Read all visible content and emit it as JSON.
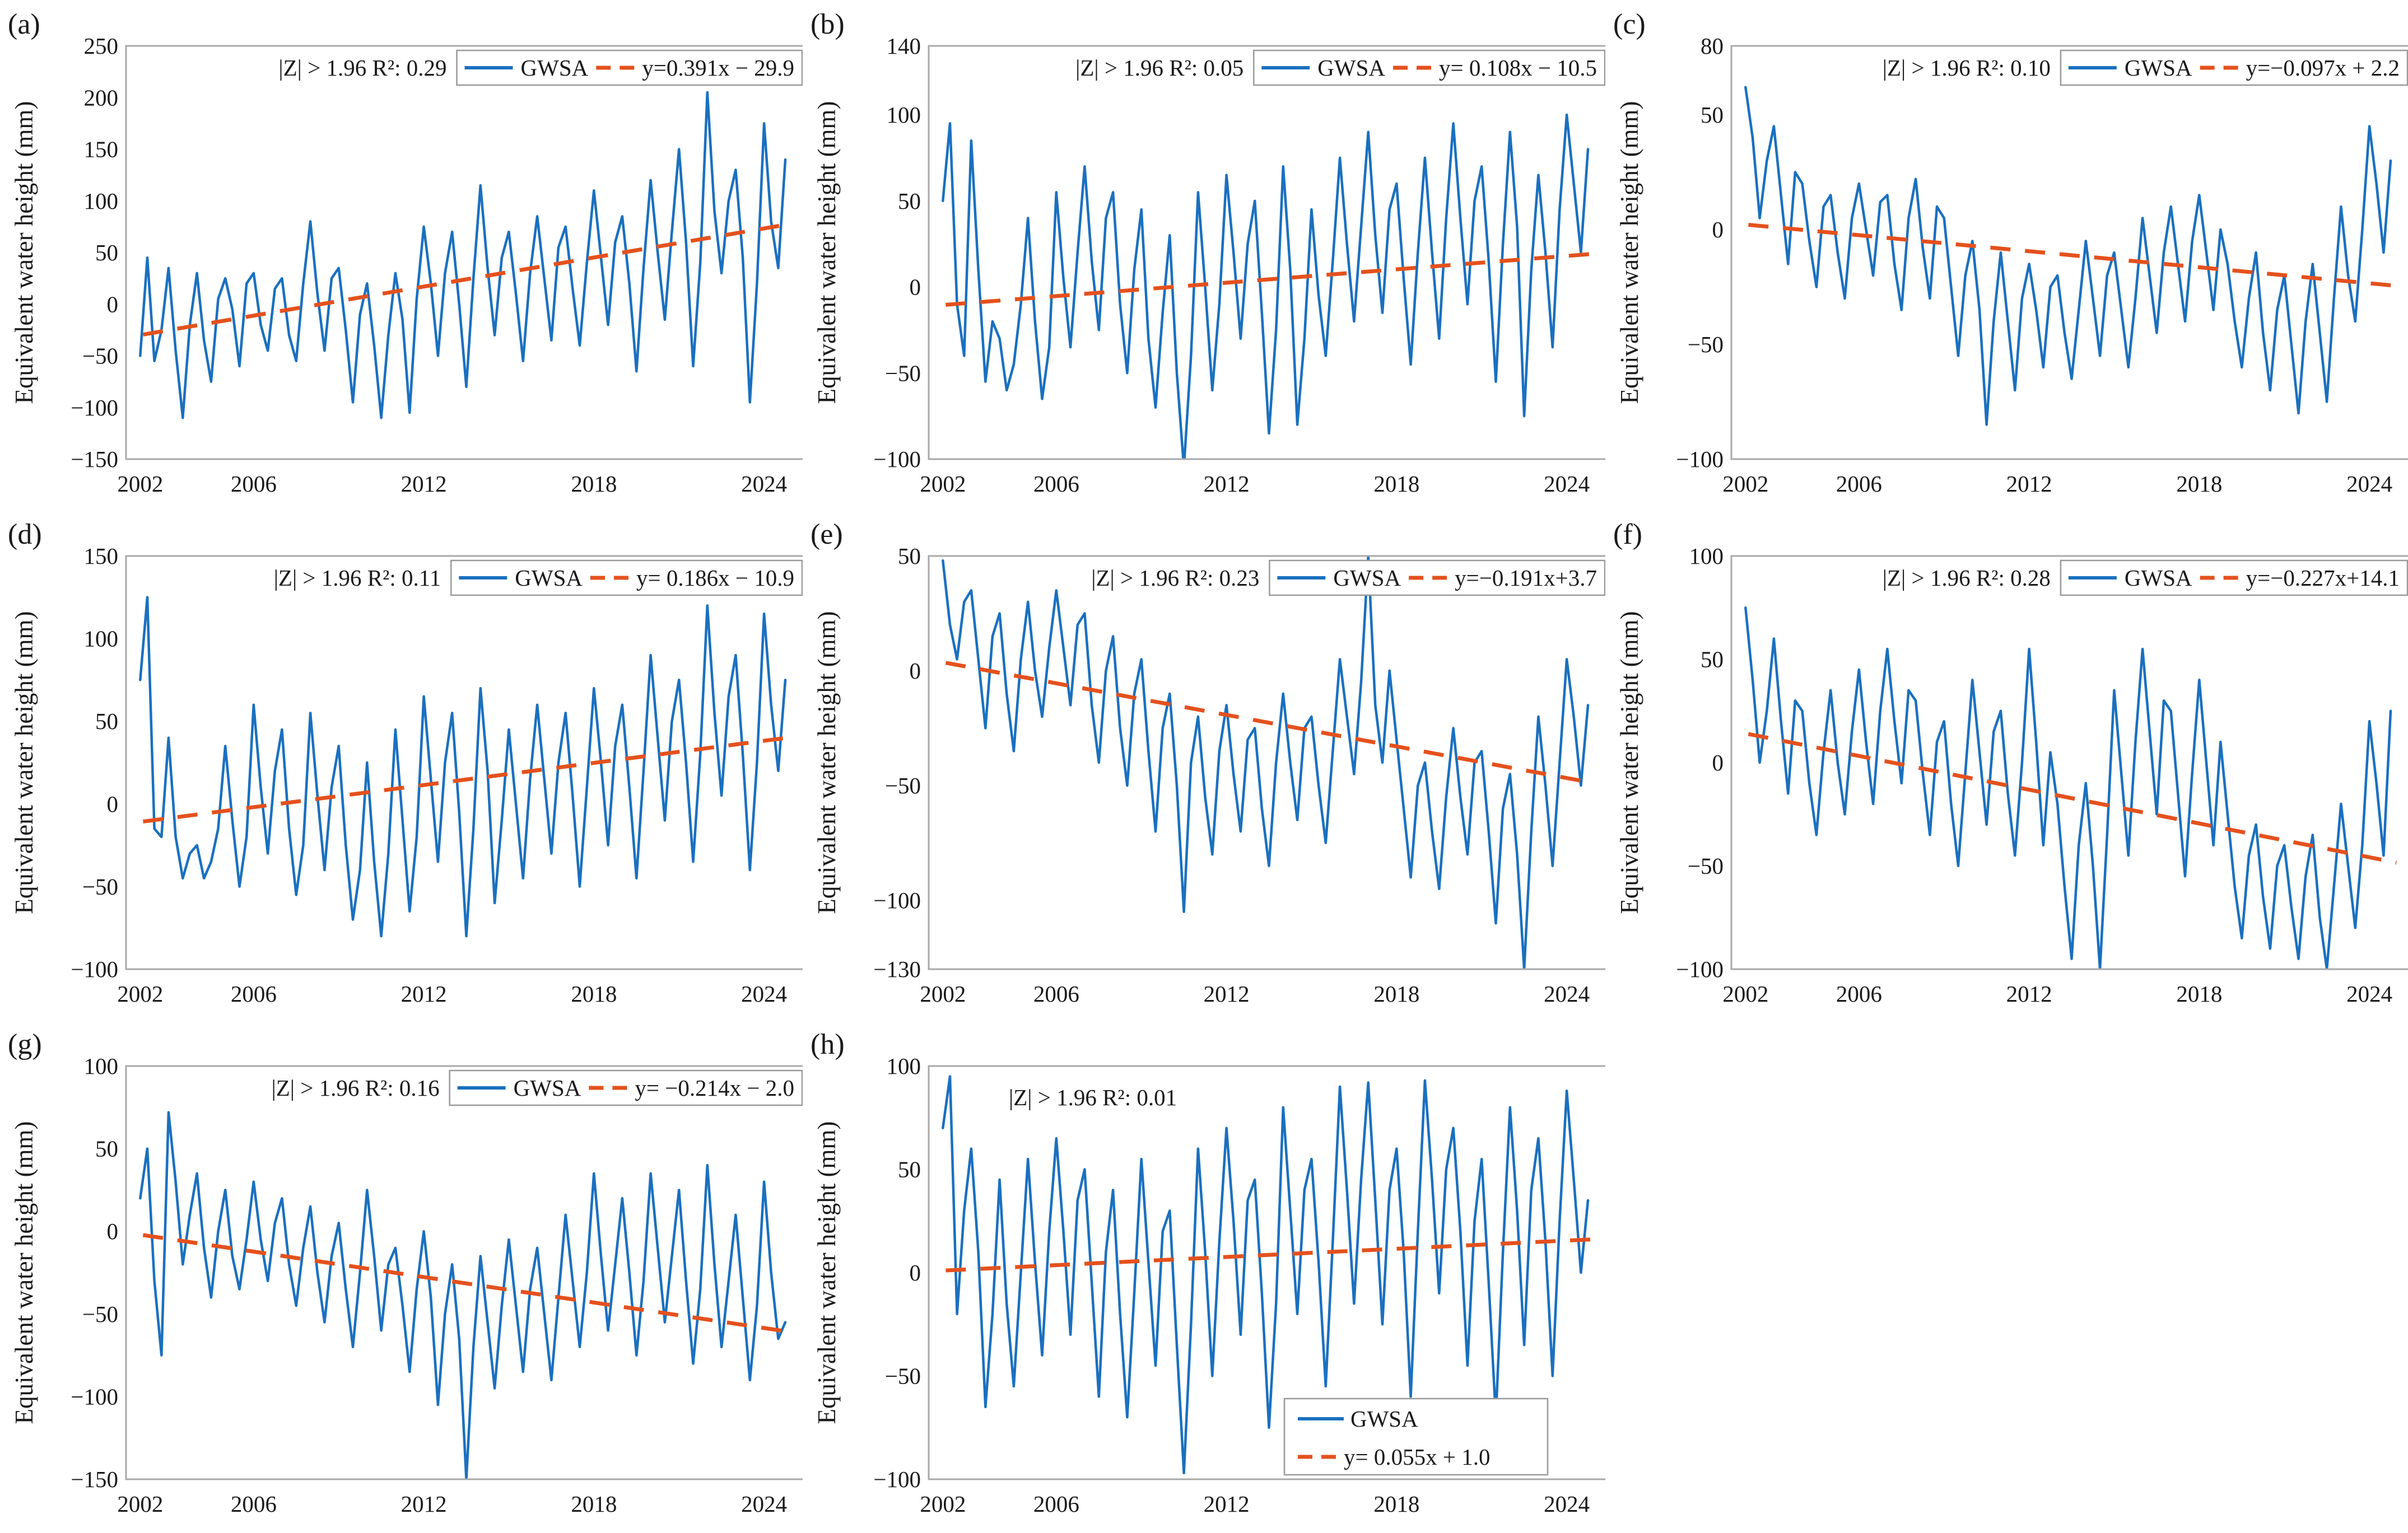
{
  "figure": {
    "ylabel": "Equivalent water height (mm)",
    "series_label": "GWSA",
    "xlim": [
      2001.5,
      2025.5
    ],
    "xticks": [
      2002,
      2006,
      2012,
      2018,
      2024
    ],
    "colors": {
      "series": "#1a70bf",
      "trend": "#e4511d",
      "axes_border": "#a9a9a9",
      "text": "#1a1a1a",
      "legend_border": "#999999"
    }
  },
  "chart_data": [
    {
      "id": "a",
      "type": "line",
      "label": "(a)",
      "stats": "|Z| > 1.96 R²: 0.29",
      "equation": "y=0.391x − 29.9",
      "trend": {
        "slope_per_month": 0.391,
        "intercept": -29.9
      },
      "ylim": [
        -150,
        250
      ],
      "yticks": [
        250,
        200,
        150,
        100,
        50,
        0,
        -50,
        -100,
        -150
      ],
      "legend_position": "top-right",
      "x_start": 2002.0,
      "x_step": 0.25,
      "values": [
        -50,
        45,
        -55,
        -25,
        35,
        -45,
        -110,
        -20,
        30,
        -35,
        -75,
        5,
        25,
        -5,
        -60,
        20,
        30,
        -20,
        -45,
        15,
        25,
        -30,
        -55,
        20,
        80,
        10,
        -45,
        25,
        35,
        -25,
        -95,
        -10,
        20,
        -40,
        -110,
        -30,
        30,
        -15,
        -105,
        5,
        75,
        20,
        -50,
        30,
        70,
        0,
        -80,
        25,
        115,
        35,
        -30,
        45,
        70,
        10,
        -55,
        30,
        85,
        25,
        -35,
        55,
        75,
        15,
        -40,
        40,
        110,
        45,
        -20,
        60,
        85,
        20,
        -65,
        35,
        120,
        50,
        -15,
        70,
        150,
        60,
        -60,
        40,
        205,
        90,
        30,
        100,
        130,
        45,
        -95,
        20,
        175,
        80,
        35,
        140
      ]
    },
    {
      "id": "b",
      "type": "line",
      "label": "(b)",
      "stats": "|Z| > 1.96 R²: 0.05",
      "equation": "y= 0.108x − 10.5",
      "trend": {
        "slope_per_month": 0.108,
        "intercept": -10.5
      },
      "ylim": [
        -100,
        140
      ],
      "yticks": [
        140,
        100,
        50,
        0,
        -50,
        -100
      ],
      "legend_position": "top-right",
      "x_start": 2002.0,
      "x_step": 0.25,
      "values": [
        50,
        95,
        -10,
        -40,
        85,
        10,
        -55,
        -20,
        -30,
        -60,
        -45,
        -10,
        40,
        -20,
        -65,
        -35,
        55,
        5,
        -35,
        20,
        70,
        15,
        -25,
        40,
        55,
        -10,
        -50,
        10,
        45,
        -30,
        -70,
        -15,
        30,
        -50,
        -105,
        -40,
        55,
        0,
        -60,
        -10,
        65,
        20,
        -30,
        25,
        50,
        -15,
        -85,
        -25,
        70,
        10,
        -80,
        -30,
        45,
        -5,
        -40,
        15,
        75,
        25,
        -20,
        35,
        90,
        30,
        -15,
        45,
        60,
        5,
        -45,
        20,
        75,
        20,
        -30,
        40,
        95,
        40,
        -10,
        50,
        70,
        15,
        -55,
        25,
        90,
        35,
        -75,
        10,
        65,
        20,
        -35,
        45,
        100,
        60,
        20,
        80
      ]
    },
    {
      "id": "c",
      "type": "line",
      "label": "(c)",
      "stats": "|Z| > 1.96 R²: 0.10",
      "equation": "y=−0.097x + 2.2",
      "trend": {
        "slope_per_month": -0.097,
        "intercept": 2.2
      },
      "ylim": [
        -100,
        80
      ],
      "yticks": [
        80,
        50,
        0,
        -50,
        -100
      ],
      "legend_position": "top-right",
      "x_start": 2002.0,
      "x_step": 0.25,
      "values": [
        62,
        40,
        5,
        30,
        45,
        15,
        -15,
        25,
        20,
        -5,
        -25,
        10,
        15,
        -10,
        -30,
        5,
        20,
        0,
        -20,
        12,
        15,
        -15,
        -35,
        5,
        22,
        -8,
        -30,
        10,
        5,
        -25,
        -55,
        -20,
        -5,
        -35,
        -85,
        -40,
        -10,
        -40,
        -70,
        -30,
        -15,
        -35,
        -60,
        -25,
        -20,
        -45,
        -65,
        -35,
        -5,
        -30,
        -55,
        -20,
        -10,
        -35,
        -60,
        -30,
        5,
        -20,
        -45,
        -10,
        10,
        -15,
        -40,
        -5,
        15,
        -10,
        -35,
        0,
        -15,
        -40,
        -60,
        -30,
        -10,
        -45,
        -70,
        -35,
        -20,
        -50,
        -80,
        -40,
        -15,
        -45,
        -75,
        -30,
        10,
        -20,
        -40,
        0,
        45,
        20,
        -10,
        30
      ]
    },
    {
      "id": "d",
      "type": "line",
      "label": "(d)",
      "stats": "|Z| > 1.96 R²: 0.11",
      "equation": "y= 0.186x − 10.9",
      "trend": {
        "slope_per_month": 0.186,
        "intercept": -10.9
      },
      "ylim": [
        -100,
        150
      ],
      "yticks": [
        150,
        100,
        50,
        0,
        -50,
        -100
      ],
      "legend_position": "top-right",
      "x_start": 2002.0,
      "x_step": 0.25,
      "values": [
        75,
        125,
        -15,
        -20,
        40,
        -20,
        -45,
        -30,
        -25,
        -45,
        -35,
        -15,
        35,
        -10,
        -50,
        -20,
        60,
        10,
        -30,
        20,
        45,
        -15,
        -55,
        -25,
        55,
        5,
        -40,
        10,
        35,
        -25,
        -70,
        -40,
        25,
        -35,
        -80,
        -30,
        45,
        -10,
        -65,
        -20,
        65,
        15,
        -35,
        25,
        55,
        -5,
        -80,
        -15,
        70,
        20,
        -60,
        -10,
        45,
        0,
        -45,
        15,
        60,
        15,
        -30,
        25,
        55,
        5,
        -50,
        10,
        70,
        25,
        -25,
        35,
        60,
        10,
        -45,
        20,
        90,
        40,
        -10,
        50,
        75,
        25,
        -35,
        30,
        120,
        55,
        5,
        65,
        90,
        30,
        -40,
        25,
        115,
        60,
        20,
        75
      ]
    },
    {
      "id": "e",
      "type": "line",
      "label": "(e)",
      "stats": "|Z| > 1.96 R²: 0.23",
      "equation": "y=−0.191x+3.7",
      "trend": {
        "slope_per_month": -0.191,
        "intercept": 3.7
      },
      "ylim": [
        -130,
        50
      ],
      "yticks": [
        50,
        0,
        -50,
        -100,
        -130
      ],
      "legend_position": "top-right",
      "x_start": 2002.0,
      "x_step": 0.25,
      "values": [
        48,
        20,
        5,
        30,
        35,
        5,
        -25,
        15,
        25,
        -10,
        -35,
        5,
        30,
        0,
        -20,
        10,
        35,
        10,
        -15,
        20,
        25,
        -15,
        -40,
        0,
        15,
        -25,
        -50,
        -10,
        5,
        -35,
        -70,
        -25,
        -10,
        -50,
        -105,
        -40,
        -20,
        -55,
        -80,
        -35,
        -15,
        -45,
        -70,
        -30,
        -25,
        -60,
        -85,
        -40,
        -10,
        -40,
        -65,
        -25,
        -20,
        -50,
        -75,
        -35,
        5,
        -20,
        -45,
        -5,
        50,
        -15,
        -40,
        0,
        -30,
        -60,
        -90,
        -50,
        -40,
        -70,
        -95,
        -55,
        -25,
        -55,
        -80,
        -40,
        -35,
        -70,
        -110,
        -60,
        -45,
        -80,
        -130,
        -70,
        -20,
        -50,
        -85,
        -40,
        5,
        -20,
        -50,
        -15
      ]
    },
    {
      "id": "f",
      "type": "line",
      "label": "(f)",
      "stats": "|Z| > 1.96 R²: 0.28",
      "equation": "y=−0.227x+14.1",
      "trend": {
        "slope_per_month": -0.227,
        "intercept": 14.1
      },
      "ylim": [
        -100,
        100
      ],
      "yticks": [
        100,
        50,
        0,
        -50,
        -100
      ],
      "legend_position": "top-right",
      "x_start": 2002.0,
      "x_step": 0.25,
      "values": [
        75,
        40,
        0,
        25,
        60,
        20,
        -15,
        30,
        25,
        -10,
        -35,
        5,
        35,
        0,
        -25,
        15,
        45,
        10,
        -20,
        25,
        55,
        20,
        -10,
        35,
        30,
        -5,
        -35,
        10,
        20,
        -20,
        -50,
        -5,
        40,
        5,
        -30,
        15,
        25,
        -15,
        -45,
        0,
        55,
        10,
        -40,
        5,
        -20,
        -60,
        -95,
        -40,
        -10,
        -50,
        -100,
        -35,
        35,
        -5,
        -45,
        10,
        55,
        15,
        -25,
        30,
        25,
        -15,
        -55,
        -5,
        40,
        0,
        -40,
        10,
        -25,
        -60,
        -85,
        -45,
        -30,
        -65,
        -90,
        -50,
        -40,
        -70,
        -95,
        -55,
        -35,
        -75,
        -100,
        -60,
        -20,
        -50,
        -80,
        -40,
        20,
        -10,
        -45,
        25
      ]
    },
    {
      "id": "g",
      "type": "line",
      "label": "(g)",
      "stats": "|Z| > 1.96 R²: 0.16",
      "equation": "y= −0.214x − 2.0",
      "trend": {
        "slope_per_month": -0.214,
        "intercept": -2.0
      },
      "ylim": [
        -150,
        100
      ],
      "yticks": [
        100,
        50,
        0,
        -50,
        -100,
        -150
      ],
      "legend_position": "top-right",
      "x_start": 2002.0,
      "x_step": 0.25,
      "values": [
        20,
        50,
        -30,
        -75,
        72,
        30,
        -20,
        10,
        35,
        -10,
        -40,
        0,
        25,
        -15,
        -35,
        -5,
        30,
        -5,
        -30,
        5,
        20,
        -20,
        -45,
        -10,
        15,
        -25,
        -55,
        -15,
        5,
        -35,
        -70,
        -25,
        25,
        -15,
        -60,
        -20,
        -10,
        -45,
        -85,
        -35,
        0,
        -40,
        -105,
        -50,
        -20,
        -65,
        -150,
        -70,
        -15,
        -55,
        -95,
        -45,
        -5,
        -45,
        -85,
        -35,
        -10,
        -50,
        -90,
        -40,
        10,
        -30,
        -70,
        -25,
        35,
        -15,
        -60,
        -20,
        20,
        -25,
        -75,
        -30,
        35,
        -10,
        -55,
        -15,
        25,
        -30,
        -80,
        -35,
        40,
        -20,
        -70,
        -30,
        10,
        -40,
        -90,
        -45,
        30,
        -25,
        -65,
        -55
      ]
    },
    {
      "id": "h",
      "type": "line",
      "label": "(h)",
      "stats": "|Z| > 1.96 R²: 0.01",
      "equation": "y= 0.055x + 1.0",
      "trend": {
        "slope_per_month": 0.055,
        "intercept": 1.0
      },
      "ylim": [
        -100,
        100
      ],
      "yticks": [
        100,
        50,
        0,
        -50,
        -100
      ],
      "legend_position": "bottom",
      "x_start": 2002.0,
      "x_step": 0.25,
      "values": [
        70,
        95,
        -20,
        30,
        60,
        10,
        -65,
        -20,
        45,
        -15,
        -55,
        0,
        55,
        5,
        -40,
        20,
        65,
        20,
        -30,
        35,
        50,
        -5,
        -60,
        10,
        40,
        -20,
        -70,
        -10,
        55,
        5,
        -45,
        20,
        30,
        -35,
        -97,
        -25,
        60,
        10,
        -50,
        15,
        70,
        25,
        -30,
        35,
        45,
        -10,
        -75,
        -15,
        80,
        30,
        -20,
        40,
        55,
        5,
        -55,
        15,
        90,
        40,
        -15,
        45,
        92,
        35,
        -25,
        40,
        60,
        10,
        -60,
        20,
        93,
        45,
        -10,
        50,
        70,
        20,
        -45,
        25,
        55,
        -5,
        -70,
        10,
        80,
        30,
        -35,
        40,
        65,
        15,
        -50,
        25,
        88,
        45,
        0,
        35
      ]
    }
  ]
}
